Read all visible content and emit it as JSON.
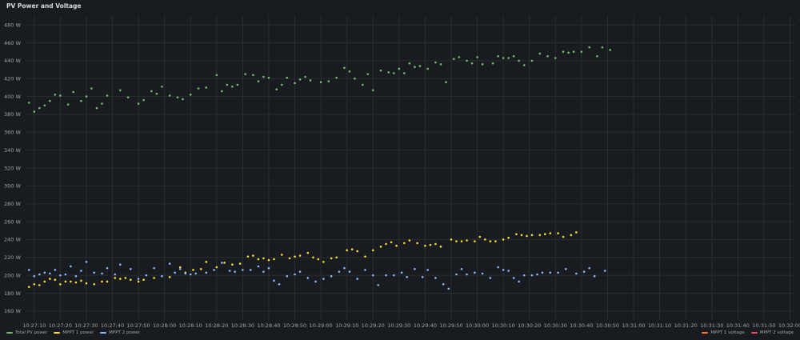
{
  "panel": {
    "title": "PV Power and Voltage"
  },
  "chart_data": {
    "type": "scatter",
    "title": "",
    "xlabel": "",
    "ylabel": "",
    "unit": "W",
    "xlim": [
      "10:27:07",
      "10:32:02"
    ],
    "ylim": [
      150,
      490
    ],
    "y_ticks": [
      "480 W",
      "460 W",
      "440 W",
      "420 W",
      "400 W",
      "380 W",
      "360 W",
      "340 W",
      "320 W",
      "300 W",
      "280 W",
      "260 W",
      "240 W",
      "220 W",
      "200 W",
      "180 W",
      "160 W"
    ],
    "x_ticks": [
      "10:27:10",
      "10:27:20",
      "10:27:30",
      "10:27:40",
      "10:27:50",
      "10:28:00",
      "10:28:10",
      "10:28:20",
      "10:28:30",
      "10:28:40",
      "10:28:50",
      "10:29:00",
      "10:29:10",
      "10:29:20",
      "10:29:30",
      "10:29:40",
      "10:29:50",
      "10:30:00",
      "10:30:10",
      "10:30:20",
      "10:30:30",
      "10:30:40",
      "10:30:50",
      "10:31:00",
      "10:31:10",
      "10:31:20",
      "10:31:30",
      "10:31:40",
      "10:31:50",
      "10:32:00"
    ],
    "grid": true,
    "legend_position": "bottom",
    "series": [
      {
        "name": "Total PV power",
        "color": "#73bf69",
        "points": [
          [
            "10:27:08",
            393
          ],
          [
            "10:27:10",
            383
          ],
          [
            "10:27:12",
            387
          ],
          [
            "10:27:14",
            390
          ],
          [
            "10:27:16",
            395
          ],
          [
            "10:27:18",
            402
          ],
          [
            "10:27:20",
            401
          ],
          [
            "10:27:23",
            391
          ],
          [
            "10:27:25",
            405
          ],
          [
            "10:27:28",
            395
          ],
          [
            "10:27:30",
            400
          ],
          [
            "10:27:32",
            409
          ],
          [
            "10:27:34",
            387
          ],
          [
            "10:27:36",
            392
          ],
          [
            "10:27:38",
            401
          ],
          [
            "10:27:43",
            407
          ],
          [
            "10:27:46",
            399
          ],
          [
            "10:27:50",
            392
          ],
          [
            "10:27:52",
            396
          ],
          [
            "10:27:55",
            406
          ],
          [
            "10:27:57",
            403
          ],
          [
            "10:27:59",
            411
          ],
          [
            "10:28:02",
            401
          ],
          [
            "10:28:05",
            399
          ],
          [
            "10:28:07",
            397
          ],
          [
            "10:28:10",
            402
          ],
          [
            "10:28:13",
            409
          ],
          [
            "10:28:16",
            410
          ],
          [
            "10:28:20",
            424
          ],
          [
            "10:28:22",
            406
          ],
          [
            "10:28:24",
            413
          ],
          [
            "10:28:26",
            411
          ],
          [
            "10:28:28",
            413
          ],
          [
            "10:28:31",
            425
          ],
          [
            "10:28:34",
            424
          ],
          [
            "10:28:36",
            417
          ],
          [
            "10:28:38",
            422
          ],
          [
            "10:28:40",
            421
          ],
          [
            "10:28:43",
            408
          ],
          [
            "10:28:45",
            413
          ],
          [
            "10:28:47",
            421
          ],
          [
            "10:28:50",
            415
          ],
          [
            "10:28:52",
            419
          ],
          [
            "10:28:54",
            422
          ],
          [
            "10:28:56",
            418
          ],
          [
            "10:29:00",
            416
          ],
          [
            "10:29:03",
            417
          ],
          [
            "10:29:06",
            421
          ],
          [
            "10:29:09",
            432
          ],
          [
            "10:29:11",
            428
          ],
          [
            "10:29:13",
            420
          ],
          [
            "10:29:16",
            413
          ],
          [
            "10:29:18",
            425
          ],
          [
            "10:29:20",
            407
          ],
          [
            "10:29:23",
            429
          ],
          [
            "10:29:26",
            427
          ],
          [
            "10:29:28",
            426
          ],
          [
            "10:29:30",
            431
          ],
          [
            "10:29:32",
            426
          ],
          [
            "10:29:34",
            437
          ],
          [
            "10:29:36",
            433
          ],
          [
            "10:29:38",
            434
          ],
          [
            "10:29:41",
            431
          ],
          [
            "10:29:44",
            438
          ],
          [
            "10:29:46",
            436
          ],
          [
            "10:29:48",
            416
          ],
          [
            "10:29:51",
            442
          ],
          [
            "10:29:53",
            444
          ],
          [
            "10:29:56",
            440
          ],
          [
            "10:29:58",
            437
          ],
          [
            "10:30:00",
            444
          ],
          [
            "10:30:02",
            436
          ],
          [
            "10:30:06",
            437
          ],
          [
            "10:30:08",
            445
          ],
          [
            "10:30:10",
            443
          ],
          [
            "10:30:12",
            443
          ],
          [
            "10:30:14",
            445
          ],
          [
            "10:30:16",
            440
          ],
          [
            "10:30:18",
            435
          ],
          [
            "10:30:21",
            440
          ],
          [
            "10:30:24",
            448
          ],
          [
            "10:30:27",
            445
          ],
          [
            "10:30:30",
            443
          ],
          [
            "10:30:33",
            450
          ],
          [
            "10:30:35",
            449
          ],
          [
            "10:30:37",
            450
          ],
          [
            "10:30:40",
            450
          ],
          [
            "10:30:43",
            455
          ],
          [
            "10:30:46",
            445
          ],
          [
            "10:30:48",
            455
          ],
          [
            "10:30:51",
            452
          ]
        ]
      },
      {
        "name": "MPPT 1 power",
        "color": "#fade2a",
        "points": [
          [
            "10:27:08",
            187
          ],
          [
            "10:27:10",
            190
          ],
          [
            "10:27:12",
            189
          ],
          [
            "10:27:14",
            193
          ],
          [
            "10:27:16",
            196
          ],
          [
            "10:27:18",
            195
          ],
          [
            "10:27:20",
            190
          ],
          [
            "10:27:22",
            193
          ],
          [
            "10:27:24",
            193
          ],
          [
            "10:27:26",
            192
          ],
          [
            "10:27:28",
            194
          ],
          [
            "10:27:30",
            191
          ],
          [
            "10:27:33",
            190
          ],
          [
            "10:27:36",
            193
          ],
          [
            "10:27:38",
            193
          ],
          [
            "10:27:41",
            197
          ],
          [
            "10:27:43",
            196
          ],
          [
            "10:27:45",
            197
          ],
          [
            "10:27:47",
            195
          ],
          [
            "10:27:50",
            193
          ],
          [
            "10:27:52",
            195
          ],
          [
            "10:27:56",
            197
          ],
          [
            "10:28:02",
            198
          ],
          [
            "10:28:06",
            209
          ],
          [
            "10:28:08",
            203
          ],
          [
            "10:28:11",
            206
          ],
          [
            "10:28:14",
            207
          ],
          [
            "10:28:16",
            215
          ],
          [
            "10:28:20",
            209
          ],
          [
            "10:28:23",
            214
          ],
          [
            "10:28:26",
            212
          ],
          [
            "10:28:29",
            213
          ],
          [
            "10:28:32",
            221
          ],
          [
            "10:28:34",
            222
          ],
          [
            "10:28:36",
            218
          ],
          [
            "10:28:38",
            219
          ],
          [
            "10:28:40",
            217
          ],
          [
            "10:28:42",
            218
          ],
          [
            "10:28:45",
            223
          ],
          [
            "10:28:48",
            219
          ],
          [
            "10:28:50",
            221
          ],
          [
            "10:28:52",
            222
          ],
          [
            "10:28:55",
            225
          ],
          [
            "10:28:57",
            220
          ],
          [
            "10:28:59",
            218
          ],
          [
            "10:29:01",
            215
          ],
          [
            "10:29:04",
            219
          ],
          [
            "10:29:06",
            220
          ],
          [
            "10:29:10",
            228
          ],
          [
            "10:29:12",
            229
          ],
          [
            "10:29:14",
            227
          ],
          [
            "10:29:17",
            221
          ],
          [
            "10:29:20",
            228
          ],
          [
            "10:29:23",
            232
          ],
          [
            "10:29:25",
            235
          ],
          [
            "10:29:27",
            237
          ],
          [
            "10:29:29",
            233
          ],
          [
            "10:29:32",
            236
          ],
          [
            "10:29:34",
            239
          ],
          [
            "10:29:37",
            236
          ],
          [
            "10:29:40",
            233
          ],
          [
            "10:29:42",
            234
          ],
          [
            "10:29:44",
            235
          ],
          [
            "10:29:46",
            232
          ],
          [
            "10:29:50",
            240
          ],
          [
            "10:29:52",
            238
          ],
          [
            "10:29:54",
            238
          ],
          [
            "10:29:56",
            239
          ],
          [
            "10:29:59",
            238
          ],
          [
            "10:30:01",
            243
          ],
          [
            "10:30:03",
            240
          ],
          [
            "10:30:05",
            238
          ],
          [
            "10:30:07",
            238
          ],
          [
            "10:30:10",
            240
          ],
          [
            "10:30:12",
            242
          ],
          [
            "10:30:15",
            246
          ],
          [
            "10:30:17",
            245
          ],
          [
            "10:30:19",
            244
          ],
          [
            "10:30:21",
            245
          ],
          [
            "10:30:24",
            245
          ],
          [
            "10:30:26",
            246
          ],
          [
            "10:30:28",
            247
          ],
          [
            "10:30:31",
            247
          ],
          [
            "10:30:33",
            243
          ],
          [
            "10:30:36",
            245
          ],
          [
            "10:30:38",
            248
          ]
        ]
      },
      {
        "name": "MPPT 2 power",
        "color": "#8ab8ff",
        "points": [
          [
            "10:27:08",
            206
          ],
          [
            "10:27:10",
            199
          ],
          [
            "10:27:12",
            201
          ],
          [
            "10:27:14",
            203
          ],
          [
            "10:27:16",
            202
          ],
          [
            "10:27:18",
            206
          ],
          [
            "10:27:20",
            200
          ],
          [
            "10:27:22",
            201
          ],
          [
            "10:27:24",
            210
          ],
          [
            "10:27:26",
            199
          ],
          [
            "10:27:28",
            205
          ],
          [
            "10:27:30",
            215
          ],
          [
            "10:27:33",
            203
          ],
          [
            "10:27:36",
            202
          ],
          [
            "10:27:38",
            208
          ],
          [
            "10:27:41",
            201
          ],
          [
            "10:27:43",
            212
          ],
          [
            "10:27:47",
            207
          ],
          [
            "10:27:50",
            196
          ],
          [
            "10:27:53",
            200
          ],
          [
            "10:27:56",
            208
          ],
          [
            "10:27:59",
            199
          ],
          [
            "10:28:02",
            213
          ],
          [
            "10:28:04",
            203
          ],
          [
            "10:28:06",
            207
          ],
          [
            "10:28:08",
            202
          ],
          [
            "10:28:10",
            201
          ],
          [
            "10:28:12",
            202
          ],
          [
            "10:28:16",
            203
          ],
          [
            "10:28:19",
            206
          ],
          [
            "10:28:22",
            214
          ],
          [
            "10:28:25",
            205
          ],
          [
            "10:28:27",
            204
          ],
          [
            "10:28:30",
            206
          ],
          [
            "10:28:33",
            206
          ],
          [
            "10:28:36",
            210
          ],
          [
            "10:28:38",
            204
          ],
          [
            "10:28:40",
            208
          ],
          [
            "10:28:42",
            194
          ],
          [
            "10:28:44",
            190
          ],
          [
            "10:28:47",
            199
          ],
          [
            "10:28:50",
            201
          ],
          [
            "10:28:52",
            204
          ],
          [
            "10:28:55",
            197
          ],
          [
            "10:28:58",
            193
          ],
          [
            "10:29:01",
            196
          ],
          [
            "10:29:04",
            199
          ],
          [
            "10:29:07",
            204
          ],
          [
            "10:29:09",
            208
          ],
          [
            "10:29:11",
            204
          ],
          [
            "10:29:14",
            196
          ],
          [
            "10:29:17",
            206
          ],
          [
            "10:29:20",
            200
          ],
          [
            "10:29:22",
            189
          ],
          [
            "10:29:25",
            200
          ],
          [
            "10:29:28",
            200
          ],
          [
            "10:29:31",
            203
          ],
          [
            "10:29:33",
            198
          ],
          [
            "10:29:36",
            207
          ],
          [
            "10:29:39",
            198
          ],
          [
            "10:29:41",
            206
          ],
          [
            "10:29:44",
            197
          ],
          [
            "10:29:47",
            190
          ],
          [
            "10:29:49",
            185
          ],
          [
            "10:29:52",
            201
          ],
          [
            "10:29:54",
            207
          ],
          [
            "10:29:56",
            201
          ],
          [
            "10:29:59",
            203
          ],
          [
            "10:30:02",
            202
          ],
          [
            "10:30:05",
            197
          ],
          [
            "10:30:08",
            209
          ],
          [
            "10:30:10",
            206
          ],
          [
            "10:30:12",
            205
          ],
          [
            "10:30:14",
            197
          ],
          [
            "10:30:16",
            193
          ],
          [
            "10:30:18",
            200
          ],
          [
            "10:30:21",
            200
          ],
          [
            "10:30:23",
            201
          ],
          [
            "10:30:25",
            203
          ],
          [
            "10:30:28",
            203
          ],
          [
            "10:30:31",
            203
          ],
          [
            "10:30:34",
            207
          ],
          [
            "10:30:38",
            202
          ],
          [
            "10:30:41",
            204
          ],
          [
            "10:30:43",
            208
          ],
          [
            "10:30:45",
            199
          ],
          [
            "10:30:49",
            205
          ]
        ]
      },
      {
        "name": "MPPT 1 voltage",
        "color": "#ff780a",
        "points": []
      },
      {
        "name": "MPPT 2 voltage",
        "color": "#f2495c",
        "points": []
      }
    ]
  }
}
